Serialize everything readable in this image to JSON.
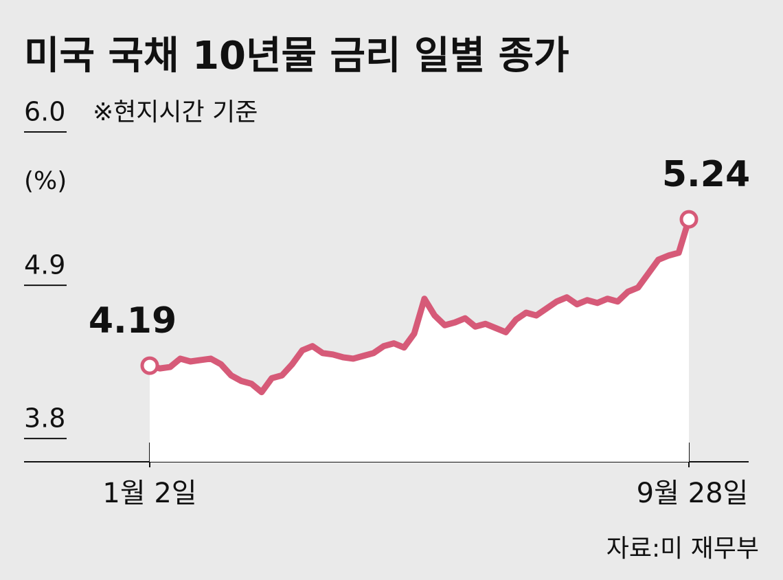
{
  "chart_data": {
    "type": "line",
    "title": "미국 국채 10년물 금리 일별 종가",
    "subtitle": "※현지시간 기준",
    "y_label": "(%)",
    "source": "자료:미 재무부",
    "categories": [
      "1월 2일",
      null,
      null,
      null,
      null,
      null,
      null,
      null,
      null,
      null,
      null,
      null,
      null,
      null,
      null,
      null,
      null,
      null,
      null,
      null,
      null,
      null,
      null,
      null,
      null,
      null,
      null,
      null,
      null,
      null,
      null,
      null,
      null,
      null,
      null,
      null,
      null,
      null,
      null,
      null,
      null,
      null,
      null,
      null,
      null,
      null,
      null,
      null,
      null,
      null,
      null,
      null,
      null,
      "9월 28일"
    ],
    "series": [
      {
        "color": "#d65a78",
        "values": [
          4.19,
          4.17,
          4.18,
          4.24,
          4.22,
          4.23,
          4.24,
          4.2,
          4.12,
          4.08,
          4.06,
          4.0,
          4.1,
          4.12,
          4.2,
          4.3,
          4.33,
          4.28,
          4.27,
          4.25,
          4.24,
          4.26,
          4.28,
          4.33,
          4.35,
          4.32,
          4.42,
          4.67,
          4.55,
          4.48,
          4.5,
          4.53,
          4.47,
          4.49,
          4.46,
          4.43,
          4.52,
          4.57,
          4.55,
          4.6,
          4.65,
          4.68,
          4.63,
          4.66,
          4.64,
          4.67,
          4.65,
          4.72,
          4.75,
          4.85,
          4.95,
          4.98,
          5.0,
          5.24
        ]
      }
    ],
    "ylim": [
      3.5,
      6.0
    ],
    "yticks": [
      3.8,
      4.9,
      {
        "value": 6.0,
        "label": "6.0"
      }
    ]
  }
}
